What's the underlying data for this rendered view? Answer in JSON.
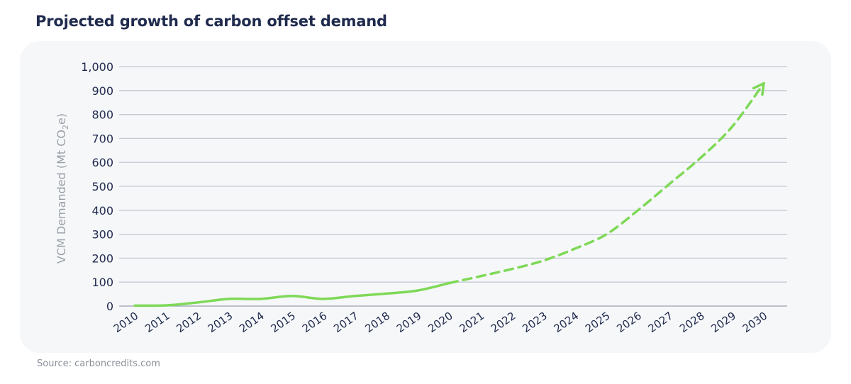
{
  "chart_data": {
    "type": "line",
    "title": "Projected growth of carbon offset demand",
    "ylabel_main": "VCM Demanded (Mt CO",
    "ylabel_sub": "2",
    "ylabel_end": "e)",
    "source": "Source: carboncredits.com",
    "ylim": [
      0,
      1000
    ],
    "y_ticks": [
      0,
      100,
      200,
      300,
      400,
      500,
      600,
      700,
      800,
      900,
      1000
    ],
    "y_tick_labels": [
      "0",
      "100",
      "200",
      "300",
      "400",
      "500",
      "600",
      "700",
      "800",
      "900",
      "1,000"
    ],
    "x": [
      "2010",
      "2011",
      "2012",
      "2013",
      "2014",
      "2015",
      "2016",
      "2017",
      "2018",
      "2019",
      "2020",
      "2021",
      "2022",
      "2023",
      "2024",
      "2025",
      "2026",
      "2027",
      "2028",
      "2029",
      "2030"
    ],
    "grid": true,
    "series": [
      {
        "style": "solid",
        "color": "#7ed957",
        "x": [
          2010,
          2011,
          2012,
          2013,
          2014,
          2015,
          2016,
          2017,
          2018,
          2019,
          2020
        ],
        "values": [
          2,
          3,
          15,
          30,
          30,
          42,
          30,
          42,
          52,
          65,
          96
        ]
      },
      {
        "style": "dashed-arrow",
        "color": "#7ed957",
        "x": [
          2020,
          2021,
          2022,
          2023,
          2024,
          2025,
          2026,
          2027,
          2028,
          2029,
          2030
        ],
        "values": [
          96,
          125,
          155,
          190,
          240,
          300,
          400,
          510,
          620,
          750,
          930
        ]
      }
    ]
  }
}
